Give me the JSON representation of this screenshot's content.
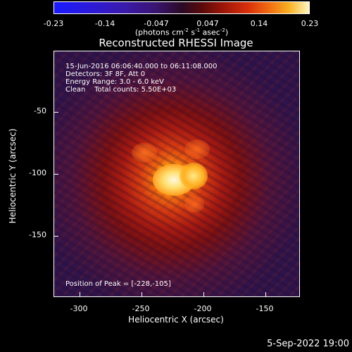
{
  "colorbar": {
    "ticks": [
      "-0.23",
      "-0.14",
      "-0.047",
      "0.047",
      "0.14",
      "0.23"
    ],
    "units": "(photons cm^-2 s^-1 asec^-2)"
  },
  "title": "Reconstructed RHESSI Image",
  "info": {
    "time_range": "15-Jun-2016 06:06:40.000 to 06:11:08.000",
    "detectors": "Detectors: 3F 8F, Att 0",
    "energy": "Energy Range: 3.0 - 6.0 keV",
    "clean": "Clean    Total counts: 5.50E+03",
    "peak": "Position of Peak = [-228,-105]"
  },
  "axes": {
    "xlabel": "Heliocentric X (arcsec)",
    "ylabel": "Heliocentric Y (arcsec)",
    "xticks": [
      "-300",
      "-250",
      "-200",
      "-150"
    ],
    "yticks": [
      "-50",
      "-100",
      "-150"
    ]
  },
  "timestamp": "5-Sep-2022 19:00"
}
